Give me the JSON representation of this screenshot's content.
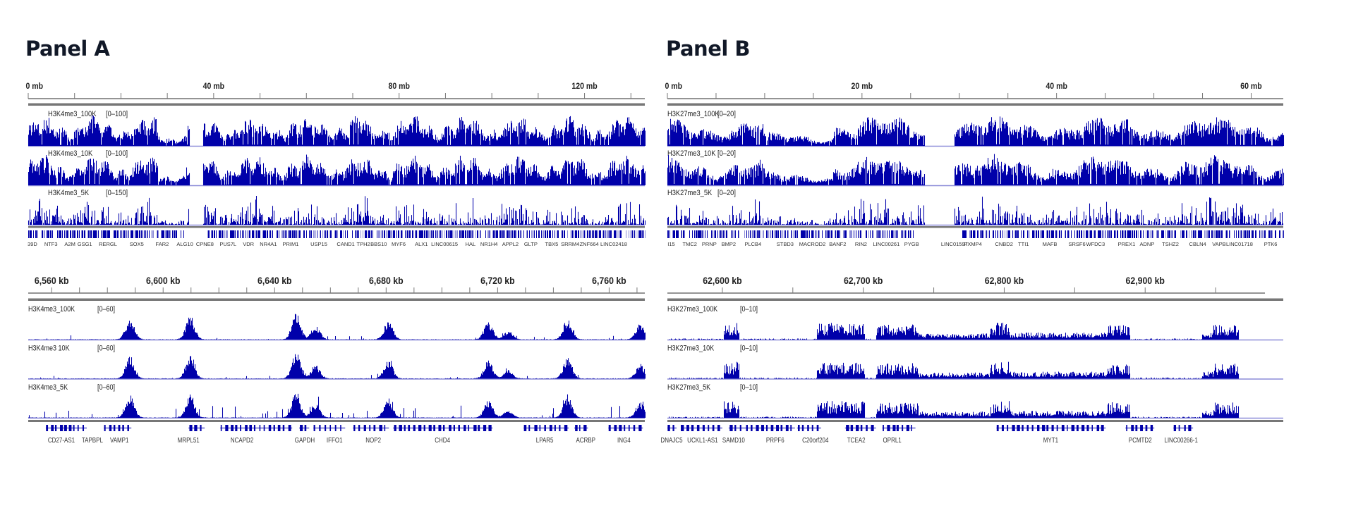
{
  "panels": [
    {
      "title": "Panel A",
      "overview": {
        "ruler": {
          "unit": "mb",
          "start": 0,
          "end": 133,
          "minor_tick_step": 10,
          "labels": [
            {
              "value": 0,
              "text": "0 mb"
            },
            {
              "value": 40,
              "text": "40 mb"
            },
            {
              "value": 80,
              "text": "80 mb"
            },
            {
              "value": 120,
              "text": "120 mb"
            }
          ]
        },
        "tracks": [
          {
            "name": "H3K4me3_100K",
            "range": "[0–100]"
          },
          {
            "name": "H3K4me3_10K",
            "range": "[0–100]"
          },
          {
            "name": "H3K4me3_5K",
            "range": "[0–150]"
          }
        ],
        "gap": [
          34.7,
          37.7
        ],
        "low_regions": [
          [
            28,
            34
          ]
        ],
        "genes": [
          {
            "name": "39D",
            "pos": 0.9
          },
          {
            "name": "NTF3",
            "pos": 4.9
          },
          {
            "name": "A2M",
            "pos": 9.0
          },
          {
            "name": "GSG1",
            "pos": 12.2
          },
          {
            "name": "RERGL",
            "pos": 17.2
          },
          {
            "name": "SOX5",
            "pos": 23.4
          },
          {
            "name": "FAR2",
            "pos": 28.9
          },
          {
            "name": "ALG10",
            "pos": 33.8
          },
          {
            "name": "CPNE8",
            "pos": 38.1
          },
          {
            "name": "PUS7L",
            "pos": 43.1
          },
          {
            "name": "VDR",
            "pos": 47.5
          },
          {
            "name": "NR4A1",
            "pos": 51.8
          },
          {
            "name": "PRIM1",
            "pos": 56.6
          },
          {
            "name": "USP15",
            "pos": 62.7
          },
          {
            "name": "CAND1",
            "pos": 68.5
          },
          {
            "name": "TPH2",
            "pos": 72.3
          },
          {
            "name": "BBS10",
            "pos": 75.6
          },
          {
            "name": "MYF6",
            "pos": 79.9
          },
          {
            "name": "ALX1",
            "pos": 84.8
          },
          {
            "name": "LINC00615",
            "pos": 89.8
          },
          {
            "name": "HAL",
            "pos": 95.4
          },
          {
            "name": "NR1H4",
            "pos": 99.4
          },
          {
            "name": "APPL2",
            "pos": 104.0
          },
          {
            "name": "GLTP",
            "pos": 108.4
          },
          {
            "name": "TBX5",
            "pos": 112.9
          },
          {
            "name": "SRRM4",
            "pos": 116.9
          },
          {
            "name": "ZNF664",
            "pos": 121.0
          },
          {
            "name": "LINC02418",
            "pos": 126.3
          }
        ]
      },
      "detail": {
        "ruler": {
          "unit": "kb",
          "start": 6551.6,
          "end": 6772.8,
          "ruler_end": 6772.8,
          "minor_tick_step": 10,
          "labels": [
            {
              "value": 6560,
              "text": "6,560 kb"
            },
            {
              "value": 6600,
              "text": "6,600 kb"
            },
            {
              "value": 6640,
              "text": "6,640 kb"
            },
            {
              "value": 6680,
              "text": "6,680 kb"
            },
            {
              "value": 6720,
              "text": "6,720 kb"
            },
            {
              "value": 6760,
              "text": "6,760 kb"
            }
          ]
        },
        "tracks": [
          {
            "name": "H3K4me3_100K",
            "range": "[0–60]"
          },
          {
            "name": "H3K4me3 10K",
            "range": "[0–60]"
          },
          {
            "name": "H3K4me3_5K",
            "range": "[0–60]"
          }
        ],
        "peaks_kb": [
          [
            6588,
            0.8
          ],
          [
            6609.6,
            0.85
          ],
          [
            6647.6,
            0.95
          ],
          [
            6654.6,
            0.5
          ],
          [
            6680.7,
            0.7
          ],
          [
            6716.6,
            0.65
          ],
          [
            6723.7,
            0.3
          ],
          [
            6745,
            0.75
          ],
          [
            6771,
            0.55
          ]
        ],
        "genes": [
          {
            "name": "CD27-AS1",
            "start": 6557.9,
            "end": 6564.3,
            "label": 6563.5
          },
          {
            "name": "TAPBPL",
            "start": 6564.3,
            "end": 6572.6,
            "label": 6574.6
          },
          {
            "name": "VAMP1",
            "start": 6578.7,
            "end": 6588.6,
            "label": 6584.3
          },
          {
            "name": "MRPL51",
            "start": 6609.1,
            "end": 6614.9,
            "label": 6609.1
          },
          {
            "name": "NCAPD2",
            "start": 6620.5,
            "end": 6646.3,
            "label": 6628.3
          },
          {
            "name": "GAPDH",
            "start": 6648.8,
            "end": 6652.4,
            "label": 6650.8
          },
          {
            "name": "IFFO1",
            "start": 6653.9,
            "end": 6665.3,
            "label": 6661.5
          },
          {
            "name": "NOP2",
            "start": 6668.1,
            "end": 6681.0,
            "label": 6675.4
          },
          {
            "name": "CHD4",
            "start": 6682.5,
            "end": 6718.2,
            "label": 6700.2
          },
          {
            "name": "LPAR5",
            "start": 6729.3,
            "end": 6745.5,
            "label": 6736.9
          },
          {
            "name": "ACRBP",
            "start": 6747.5,
            "end": 6752.4,
            "label": 6751.6
          },
          {
            "name": "ING4",
            "start": 6759.7,
            "end": 6772.1,
            "label": 6765.3
          }
        ]
      }
    },
    {
      "title": "Panel B",
      "overview": {
        "ruler": {
          "unit": "mb",
          "start": 0,
          "end": 63.3,
          "minor_tick_step": 5,
          "labels": [
            {
              "value": 0,
              "text": "0 mb"
            },
            {
              "value": 20,
              "text": "20 mb"
            },
            {
              "value": 40,
              "text": "40 mb"
            },
            {
              "value": 60,
              "text": "60 mb"
            }
          ]
        },
        "tracks": [
          {
            "name": "H3K27me3_100K",
            "range": "[0–20]"
          },
          {
            "name": "H3K27me3_10K",
            "range": "[0–20]"
          },
          {
            "name": "H3K27me3_5K",
            "range": "[0–20]"
          }
        ],
        "gap": [
          26.4,
          29.5
        ],
        "low_regions": [
          [
            10,
            17
          ]
        ],
        "genes": [
          {
            "name": "I15",
            "pos": 0.4
          },
          {
            "name": "TMC2",
            "pos": 2.3
          },
          {
            "name": "PRNP",
            "pos": 4.3
          },
          {
            "name": "BMP2",
            "pos": 6.3
          },
          {
            "name": "PLCB4",
            "pos": 8.8
          },
          {
            "name": "STBD3",
            "pos": 12.1
          },
          {
            "name": "MACROD2",
            "pos": 14.9
          },
          {
            "name": "BANF2",
            "pos": 17.5
          },
          {
            "name": "RIN2",
            "pos": 19.9
          },
          {
            "name": "LINC00261",
            "pos": 22.5
          },
          {
            "name": "PYGB",
            "pos": 25.1
          },
          {
            "name": "LINC01597",
            "pos": 29.5
          },
          {
            "name": "PXMP4",
            "pos": 31.4
          },
          {
            "name": "CNBD2",
            "pos": 34.6
          },
          {
            "name": "TTI1",
            "pos": 36.6
          },
          {
            "name": "MAFB",
            "pos": 39.3
          },
          {
            "name": "SRSF6",
            "pos": 42.1
          },
          {
            "name": "WFDC3",
            "pos": 44.0
          },
          {
            "name": "PREX1",
            "pos": 47.2
          },
          {
            "name": "ADNP",
            "pos": 49.3
          },
          {
            "name": "TSHZ2",
            "pos": 51.7
          },
          {
            "name": "CBLN4",
            "pos": 54.5
          },
          {
            "name": "VAPB",
            "pos": 56.7
          },
          {
            "name": "LINC01718",
            "pos": 58.8
          },
          {
            "name": "PTK6",
            "pos": 62.0
          }
        ]
      },
      "detail": {
        "ruler": {
          "unit": "kb",
          "start": 62561,
          "end": 62998,
          "ruler_end": 62985,
          "minor_tick_step": 50,
          "labels": [
            {
              "value": 62600,
              "text": "62,600 kb"
            },
            {
              "value": 62700,
              "text": "62,700 kb"
            },
            {
              "value": 62800,
              "text": "62,800 kb"
            },
            {
              "value": 62900,
              "text": "62,900 kb"
            }
          ]
        },
        "tracks": [
          {
            "name": "H3K27me3_100K",
            "range": "[0–10]"
          },
          {
            "name": "H3K27me3_10K",
            "range": "[0–10]"
          },
          {
            "name": "H3K27me3_5K",
            "range": "[0–10]"
          }
        ],
        "data_end_kb": 62966,
        "domains_kb": [
          [
            62601,
            62612,
            0.6
          ],
          [
            62667,
            62701,
            0.6
          ],
          [
            62709,
            62739,
            0.55
          ],
          [
            62739,
            62790,
            0.22
          ],
          [
            62790,
            62804,
            0.6
          ],
          [
            62804,
            62873,
            0.25
          ],
          [
            62873,
            62889,
            0.55
          ],
          [
            62940,
            62948,
            0.25
          ],
          [
            62948,
            62966,
            0.55
          ]
        ],
        "genes": [
          {
            "name": "DNAJC5",
            "start": 62561,
            "end": 62567.5,
            "label": 62564
          },
          {
            "name": "UCKL1-AS1",
            "start": 62570.5,
            "end": 62600,
            "label": 62586
          },
          {
            "name": "SAMD10",
            "start": 62604.5,
            "end": 62620,
            "label": 62608
          },
          {
            "name": "PRPF6",
            "start": 62620,
            "end": 62651.5,
            "label": 62637.5
          },
          {
            "name": "C20orf204",
            "start": 62653,
            "end": 62670,
            "label": 62666
          },
          {
            "name": "TCEA2",
            "start": 62687,
            "end": 62709,
            "label": 62695
          },
          {
            "name": "OPRL1",
            "start": 62713.5,
            "end": 62737,
            "label": 62720.5
          },
          {
            "name": "MYT1",
            "start": 62794.5,
            "end": 62872,
            "label": 62833
          },
          {
            "name": "PCMTD2",
            "start": 62886,
            "end": 62906.5,
            "label": 62896.5
          },
          {
            "name": "LINC00266-1",
            "start": 62920,
            "end": 62934,
            "label": 62925.5
          }
        ]
      }
    }
  ],
  "colors": {
    "signal": "#0000aa",
    "signal_light": "#8c8cd8",
    "ruler": "#555555",
    "divider": "#777777",
    "title": "#111827"
  }
}
